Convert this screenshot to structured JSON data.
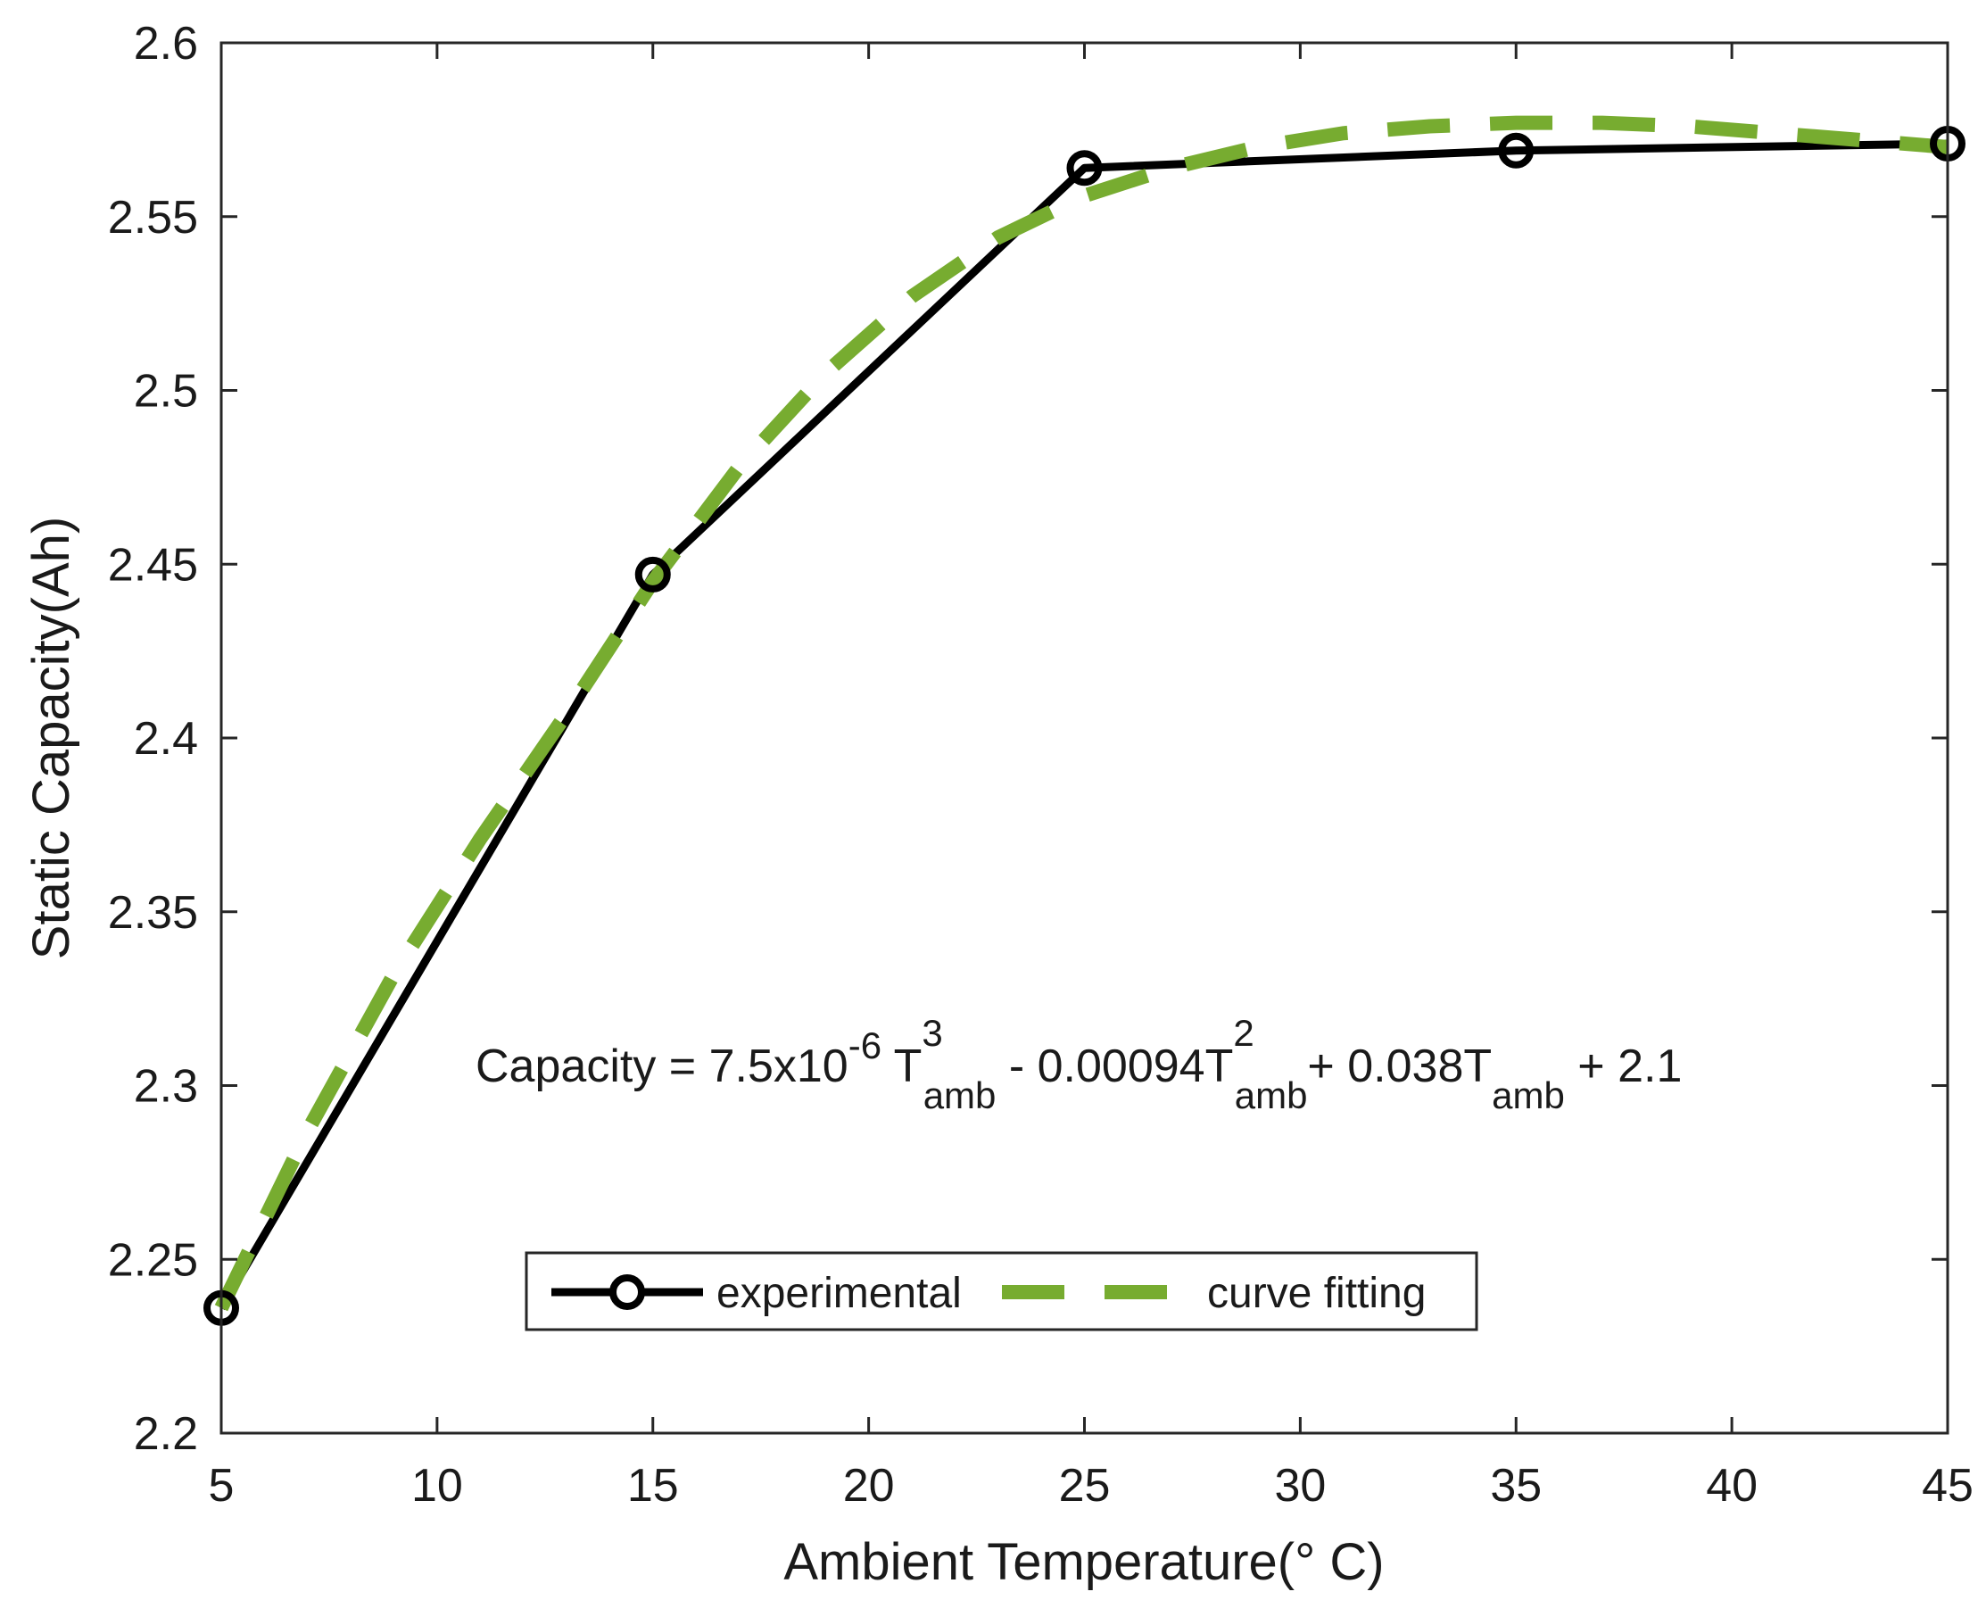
{
  "chart_data": {
    "type": "line",
    "xlabel": "Ambient Temperature(° C)",
    "ylabel": "Static Capacity(Ah)",
    "xlim": [
      5,
      45
    ],
    "ylim": [
      2.2,
      2.6
    ],
    "xticks": [
      5,
      10,
      15,
      20,
      25,
      30,
      35,
      40,
      45
    ],
    "yticks": [
      2.2,
      2.25,
      2.3,
      2.35,
      2.4,
      2.45,
      2.5,
      2.55,
      2.6
    ],
    "xtick_labels": [
      "5",
      "10",
      "15",
      "20",
      "25",
      "30",
      "35",
      "40",
      "45"
    ],
    "ytick_labels": [
      "2.2",
      "2.25",
      "2.3",
      "2.35",
      "2.4",
      "2.45",
      "2.5",
      "2.55",
      "2.6"
    ],
    "grid": false,
    "legend_position": "bottom-center",
    "series": [
      {
        "name": "experimental",
        "color": "#000000",
        "style": "solid-circle-markers",
        "x": [
          5,
          15,
          25,
          35,
          45
        ],
        "y": [
          2.236,
          2.447,
          2.564,
          2.569,
          2.571
        ]
      },
      {
        "name": "curve fitting",
        "color": "#77AC30",
        "style": "dashed",
        "x": [
          5,
          7,
          9,
          11,
          13,
          15,
          17,
          19,
          21,
          23,
          25,
          27,
          29,
          31,
          33,
          35,
          37,
          39,
          41,
          43,
          45
        ],
        "y": [
          2.236,
          2.287,
          2.332,
          2.371,
          2.407,
          2.445,
          2.478,
          2.505,
          2.527,
          2.544,
          2.556,
          2.564,
          2.57,
          2.574,
          2.576,
          2.577,
          2.577,
          2.576,
          2.574,
          2.572,
          2.57
        ]
      }
    ],
    "annotation": {
      "prefix": "Capacity = 7.5x10",
      "exp1": "-6",
      "t1": " T",
      "sup1": "3",
      "sub1": "amb",
      "mid1": " - 0.00094T",
      "sup2": "2",
      "sub2": "amb",
      "mid2": "+ 0.038T",
      "sub3": "amb",
      "suffix": " + 2.1"
    }
  }
}
